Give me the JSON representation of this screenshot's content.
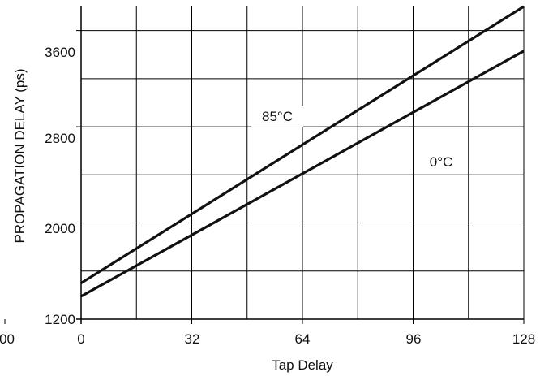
{
  "chart_data": {
    "type": "line",
    "title": "",
    "xlabel": "Tap Delay",
    "ylabel": "PROPAGATION DELAY (ps)",
    "xlim": [
      0,
      128
    ],
    "ylim": [
      1200,
      3800
    ],
    "grid": true,
    "x_ticks": [
      {
        "value": 0,
        "label": "0"
      },
      {
        "value": 32,
        "label": "32"
      },
      {
        "value": 64,
        "label": "64"
      },
      {
        "value": 96,
        "label": "96"
      },
      {
        "value": 128,
        "label": "128"
      }
    ],
    "x_minor_ticks": [
      16,
      48,
      80,
      112
    ],
    "y_ticks": [
      {
        "value": 1200,
        "label": "1200"
      },
      {
        "value": 2000,
        "label": "2000"
      },
      {
        "value": 2800,
        "label": "2800"
      },
      {
        "value": 3600,
        "label": "3600"
      }
    ],
    "y_minor_ticks": [
      1600,
      2400,
      3200
    ],
    "left_edge_label": "00",
    "series": [
      {
        "name": "85°C",
        "x": [
          0,
          128
        ],
        "y": [
          1500,
          3800
        ]
      },
      {
        "name": "0°C",
        "x": [
          0,
          128
        ],
        "y": [
          1390,
          3430
        ]
      }
    ]
  }
}
